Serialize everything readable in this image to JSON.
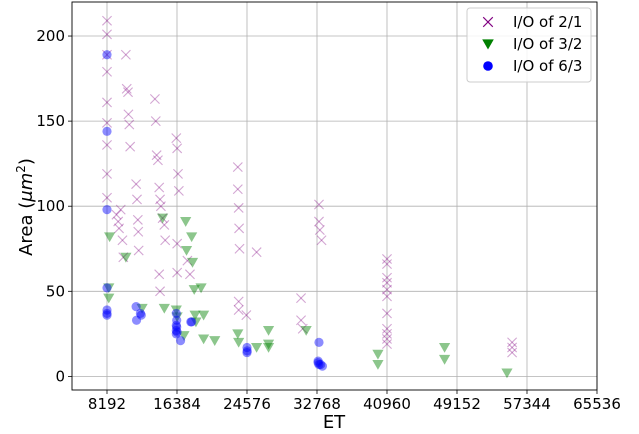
{
  "chart_data": {
    "type": "scatter",
    "xlabel": "ET",
    "ylabel": "Area (μm²)",
    "ylabel_parts": {
      "prefix": "Area (",
      "unit": "μm",
      "exp": "2",
      "suffix": ")"
    },
    "xlim": [
      4096,
      65536
    ],
    "ylim": [
      -8,
      220
    ],
    "xticks": [
      8192,
      16384,
      24576,
      32768,
      40960,
      49152,
      57344,
      65536
    ],
    "xtick_labels": [
      "8192",
      "16384",
      "24576",
      "32768",
      "40960",
      "49152",
      "57344",
      "65536"
    ],
    "yticks": [
      0,
      50,
      100,
      150,
      200
    ],
    "ytick_labels": [
      "0",
      "50",
      "100",
      "150",
      "200"
    ],
    "grid": true,
    "legend_position": "top-right",
    "series": [
      {
        "name": "I/O of 2/1",
        "marker": "x",
        "color": "#800080",
        "points": [
          [
            8192,
            209
          ],
          [
            8192,
            201
          ],
          [
            8192,
            189
          ],
          [
            8192,
            179
          ],
          [
            8192,
            161
          ],
          [
            8192,
            149
          ],
          [
            8192,
            136
          ],
          [
            8192,
            119
          ],
          [
            8192,
            105
          ],
          [
            9300,
            95
          ],
          [
            9500,
            91
          ],
          [
            9600,
            87
          ],
          [
            9800,
            98
          ],
          [
            10000,
            80
          ],
          [
            10100,
            70
          ],
          [
            10400,
            189
          ],
          [
            10500,
            169
          ],
          [
            10650,
            167
          ],
          [
            10700,
            154
          ],
          [
            10800,
            148
          ],
          [
            10900,
            135
          ],
          [
            11600,
            113
          ],
          [
            11700,
            104
          ],
          [
            11800,
            92
          ],
          [
            11850,
            85
          ],
          [
            11900,
            74
          ],
          [
            13800,
            163
          ],
          [
            13900,
            150
          ],
          [
            14000,
            130
          ],
          [
            14150,
            127
          ],
          [
            14300,
            111
          ],
          [
            14400,
            104
          ],
          [
            14500,
            100
          ],
          [
            14300,
            60
          ],
          [
            14400,
            50
          ],
          [
            14700,
            93
          ],
          [
            14900,
            89
          ],
          [
            15000,
            80
          ],
          [
            16300,
            140
          ],
          [
            16400,
            134
          ],
          [
            16500,
            119
          ],
          [
            16600,
            109
          ],
          [
            16400,
            78
          ],
          [
            16400,
            61
          ],
          [
            17600,
            68
          ],
          [
            17900,
            60
          ],
          [
            23500,
            123
          ],
          [
            23500,
            110
          ],
          [
            23600,
            99
          ],
          [
            23650,
            87
          ],
          [
            23700,
            75
          ],
          [
            23600,
            44
          ],
          [
            23600,
            39
          ],
          [
            24500,
            36
          ],
          [
            25700,
            73
          ],
          [
            30900,
            46
          ],
          [
            30900,
            33
          ],
          [
            31100,
            28
          ],
          [
            33000,
            101
          ],
          [
            33000,
            91
          ],
          [
            33100,
            86
          ],
          [
            33300,
            80
          ],
          [
            40960,
            69
          ],
          [
            40960,
            66
          ],
          [
            40960,
            58
          ],
          [
            40960,
            55
          ],
          [
            40960,
            51
          ],
          [
            40960,
            47
          ],
          [
            40960,
            37
          ],
          [
            40960,
            28
          ],
          [
            40960,
            25
          ],
          [
            40960,
            22
          ],
          [
            40960,
            19
          ],
          [
            55600,
            20
          ],
          [
            55600,
            17
          ],
          [
            55600,
            14
          ]
        ]
      },
      {
        "name": "I/O of 3/2",
        "marker": "triangle-down",
        "color": "#008000",
        "points": [
          [
            8500,
            82
          ],
          [
            8400,
            52
          ],
          [
            8400,
            46
          ],
          [
            10400,
            70
          ],
          [
            12300,
            40
          ],
          [
            14700,
            93
          ],
          [
            14900,
            40
          ],
          [
            16300,
            39
          ],
          [
            16400,
            35
          ],
          [
            17400,
            91
          ],
          [
            17500,
            74
          ],
          [
            18100,
            82
          ],
          [
            18200,
            67
          ],
          [
            18400,
            51
          ],
          [
            18500,
            36
          ],
          [
            18600,
            32
          ],
          [
            17200,
            24
          ],
          [
            19200,
            52
          ],
          [
            19500,
            36
          ],
          [
            19500,
            22
          ],
          [
            20800,
            21
          ],
          [
            23500,
            25
          ],
          [
            23600,
            20
          ],
          [
            25700,
            17
          ],
          [
            27100,
            27
          ],
          [
            27100,
            19
          ],
          [
            27100,
            17
          ],
          [
            31500,
            27
          ],
          [
            39900,
            13
          ],
          [
            39900,
            7
          ],
          [
            47700,
            17
          ],
          [
            47700,
            10
          ],
          [
            55000,
            2
          ]
        ]
      },
      {
        "name": "I/O of 6/3",
        "marker": "circle",
        "color": "#0000ff",
        "points": [
          [
            8192,
            189
          ],
          [
            8192,
            144
          ],
          [
            8192,
            98
          ],
          [
            8192,
            52
          ],
          [
            8192,
            39
          ],
          [
            8192,
            37
          ],
          [
            8192,
            36
          ],
          [
            11600,
            41
          ],
          [
            11650,
            33
          ],
          [
            12100,
            37
          ],
          [
            12200,
            36
          ],
          [
            16300,
            37
          ],
          [
            16350,
            33
          ],
          [
            16300,
            30
          ],
          [
            16350,
            29
          ],
          [
            16300,
            27
          ],
          [
            16400,
            26
          ],
          [
            16300,
            25
          ],
          [
            16800,
            21
          ],
          [
            18000,
            32
          ],
          [
            18100,
            32
          ],
          [
            24576,
            17
          ],
          [
            24600,
            15
          ],
          [
            24576,
            14
          ],
          [
            33000,
            20
          ],
          [
            32900,
            9
          ],
          [
            32900,
            8
          ],
          [
            33000,
            7
          ],
          [
            33200,
            7
          ],
          [
            33400,
            6
          ]
        ]
      }
    ]
  }
}
